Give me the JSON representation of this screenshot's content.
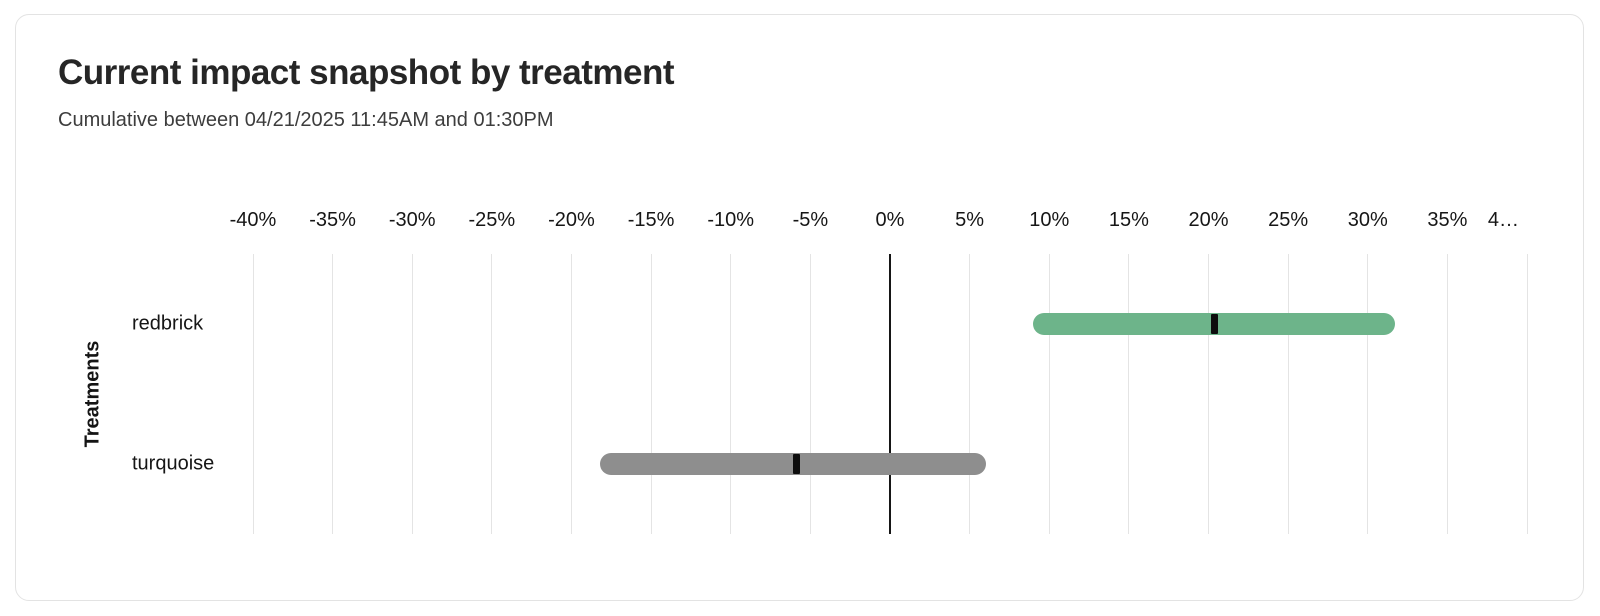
{
  "header": {
    "title": "Current impact snapshot by treatment",
    "subtitle": "Cumulative between 04/21/2025 11:45AM and 01:30PM"
  },
  "chart_data": {
    "type": "range_bar",
    "title": "Current impact snapshot by treatment",
    "subtitle": "Cumulative between 04/21/2025 11:45AM and 01:30PM",
    "xlabel": "",
    "ylabel": "Treatments",
    "x_unit": "percent",
    "xlim": [
      -40,
      40
    ],
    "grid": "vertical",
    "zero_line": true,
    "x_ticks": [
      {
        "value": -40,
        "label": "-40%"
      },
      {
        "value": -35,
        "label": "-35%"
      },
      {
        "value": -30,
        "label": "-30%"
      },
      {
        "value": -25,
        "label": "-25%"
      },
      {
        "value": -20,
        "label": "-20%"
      },
      {
        "value": -15,
        "label": "-15%"
      },
      {
        "value": -10,
        "label": "-10%"
      },
      {
        "value": -5,
        "label": "-5%"
      },
      {
        "value": 0,
        "label": "0%"
      },
      {
        "value": 5,
        "label": "5%"
      },
      {
        "value": 10,
        "label": "10%"
      },
      {
        "value": 15,
        "label": "15%"
      },
      {
        "value": 20,
        "label": "20%"
      },
      {
        "value": 25,
        "label": "25%"
      },
      {
        "value": 30,
        "label": "30%"
      },
      {
        "value": 35,
        "label": "35%"
      },
      {
        "value": 40,
        "label": "4…",
        "truncated": true
      }
    ],
    "categories": [
      "redbrick",
      "turquoise"
    ],
    "rows": [
      {
        "label": "redbrick",
        "range_low_pct": 9.0,
        "range_high_pct": 31.7,
        "estimate_pct": 20.4,
        "bar_color": "#6db48a",
        "marker_color": "#0d0d0d"
      },
      {
        "label": "turquoise",
        "range_low_pct": -18.2,
        "range_high_pct": 6.0,
        "estimate_pct": -5.9,
        "bar_color": "#8e8e8e",
        "marker_color": "#0d0d0d"
      }
    ]
  },
  "colors": {
    "card_background": "#ffffff",
    "card_border": "#e3e3e3",
    "gridline": "#e4e4e4",
    "zero_line": "#161616",
    "text": "#262626"
  }
}
